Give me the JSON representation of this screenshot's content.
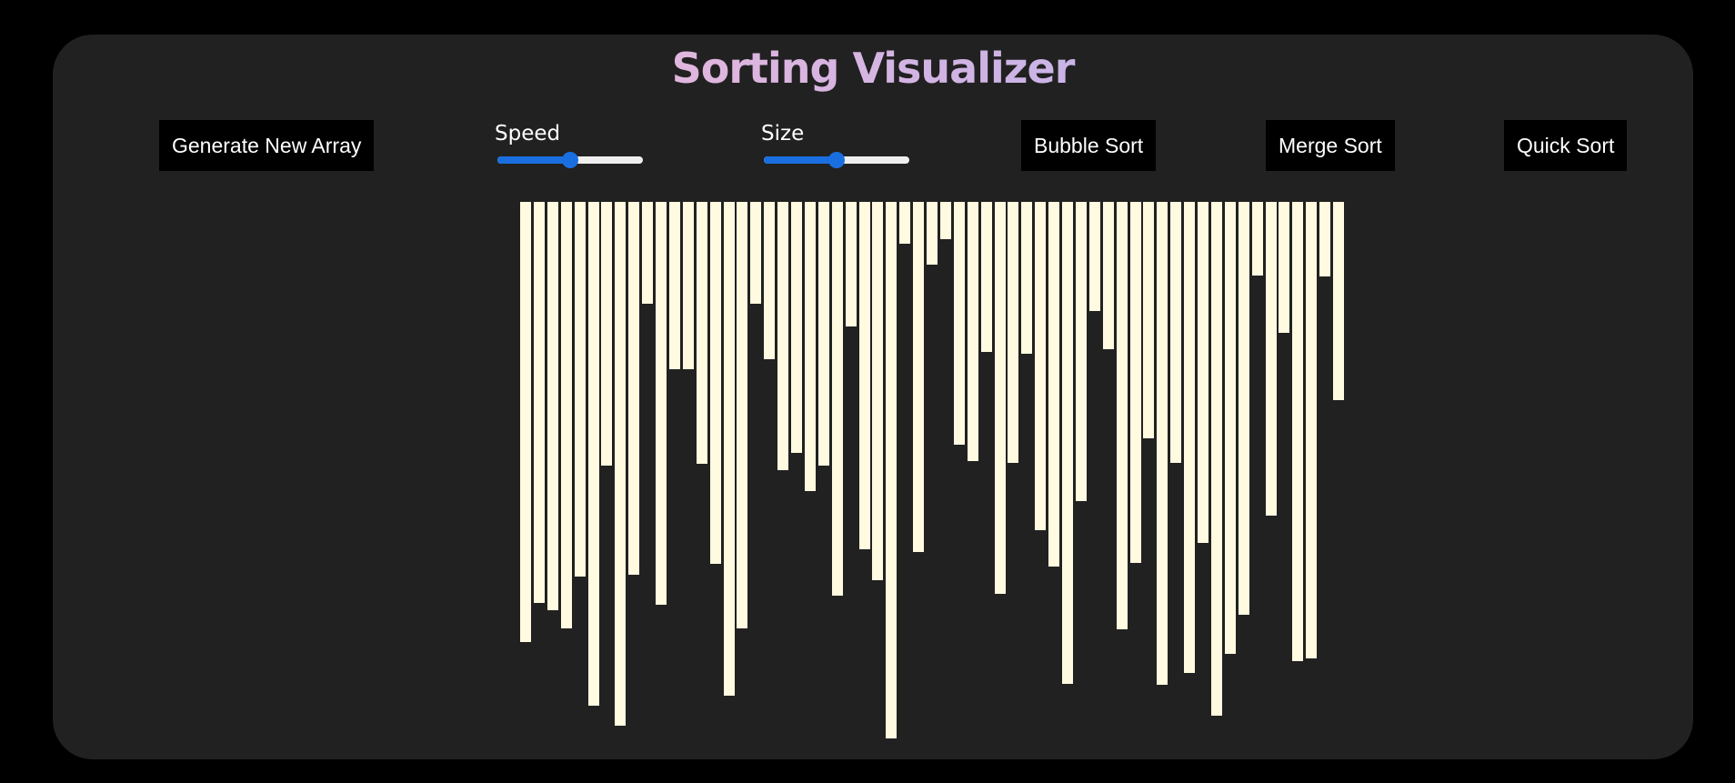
{
  "app": {
    "title": "Sorting Visualizer"
  },
  "controls": {
    "generate_label": "Generate New Array",
    "speed": {
      "label": "Speed",
      "value": 0.5
    },
    "size": {
      "label": "Size",
      "value": 0.5
    },
    "bubble_label": "Bubble Sort",
    "merge_label": "Merge Sort",
    "quick_label": "Quick Sort"
  },
  "colors": {
    "bar": "#fffae0",
    "accent": "#1a6fe0",
    "panel": "#212121"
  },
  "array": {
    "values": [
      484,
      441,
      449,
      469,
      412,
      554,
      290,
      576,
      410,
      112,
      443,
      184,
      184,
      288,
      398,
      543,
      469,
      112,
      173,
      295,
      276,
      318,
      290,
      433,
      137,
      382,
      416,
      590,
      46,
      385,
      69,
      41,
      267,
      285,
      165,
      431,
      287,
      167,
      361,
      401,
      530,
      329,
      120,
      162,
      470,
      397,
      260,
      531,
      287,
      518,
      375,
      565,
      497,
      454,
      81,
      345,
      144,
      505,
      502,
      82,
      218
    ]
  }
}
